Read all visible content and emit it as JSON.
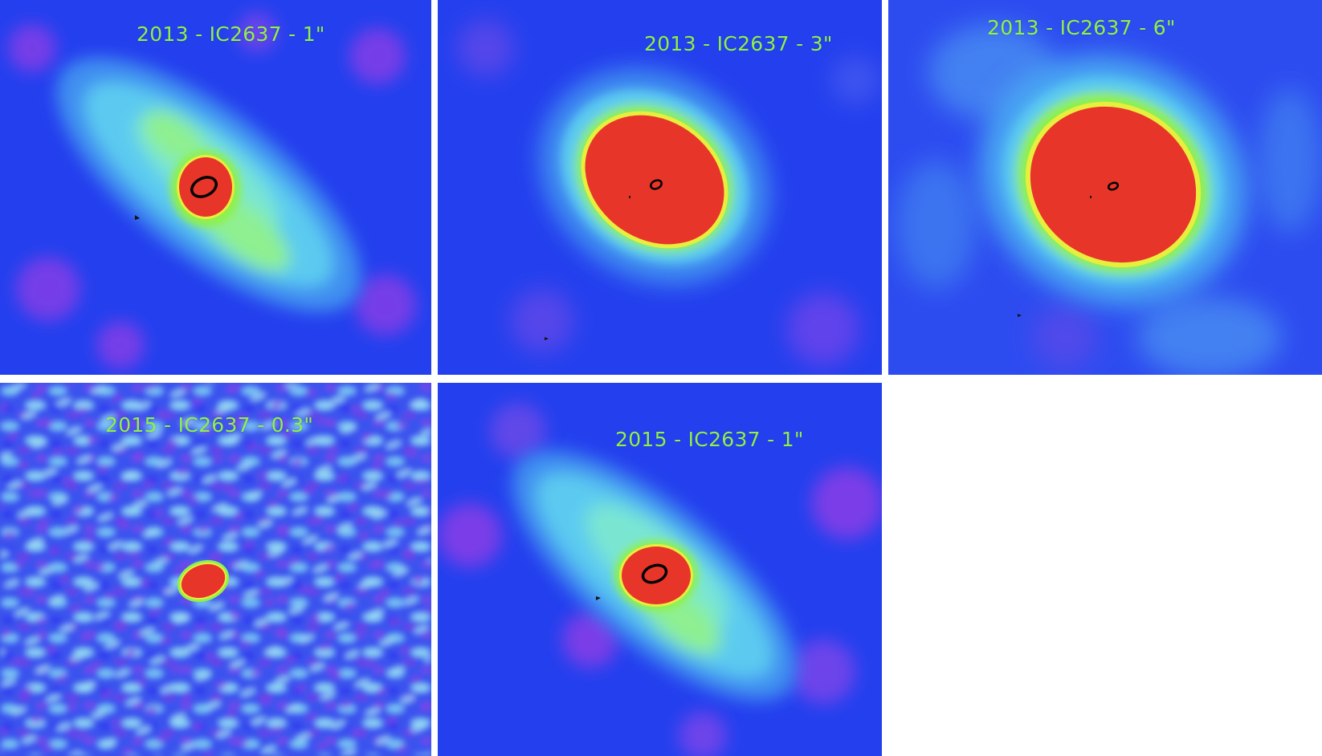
{
  "panels": [
    {
      "id": "p1",
      "label": "2013 - IC2637 - 1\""
    },
    {
      "id": "p2",
      "label": "2013 - IC2637 - 3\""
    },
    {
      "id": "p3",
      "label": "2013 - IC2637 - 6\""
    },
    {
      "id": "p4",
      "label": "2015 - IC2637 - 0.3\""
    },
    {
      "id": "p5",
      "label": "2015 - IC2637 - 1\""
    }
  ],
  "colors": {
    "background_blue": "#1f3df2",
    "noise_purple": "#8a3ee6",
    "diffuse_cyan": "#53c8f2",
    "ring_green": "#8ff04a",
    "ring_yellow": "#e8ee3e",
    "core_red": "#e8352a",
    "contour_black": "#000000",
    "label_green": "#8ff04a"
  }
}
